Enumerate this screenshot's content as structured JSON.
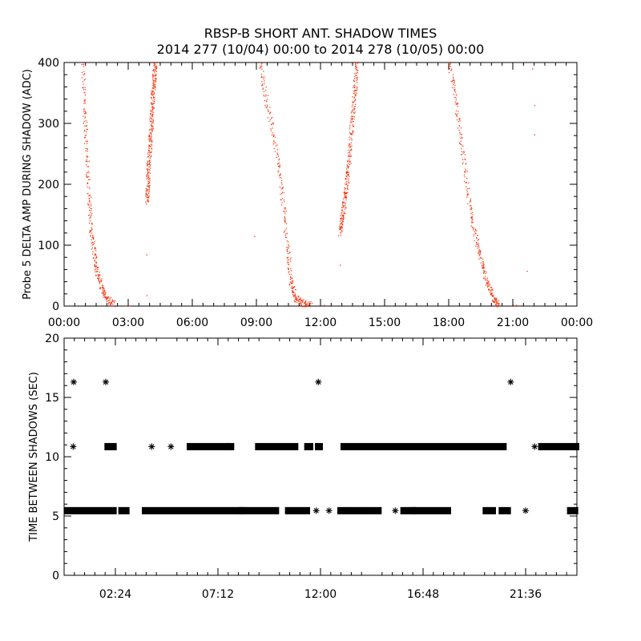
{
  "title_line1": "RBSP-B SHORT ANT. SHADOW TIMES",
  "title_line2": "2014 277 (10/04) 00:00 to 2014 278 (10/05) 00:00",
  "chart_data": [
    {
      "type": "scatter",
      "ylabel": "Probe 5 DELTA AMP DURING SHADOW (ADC)",
      "xlim": [
        0,
        24
      ],
      "ylim": [
        0,
        400
      ],
      "x_unit": "hours",
      "x_tick_labels": [
        "00:00",
        "03:00",
        "06:00",
        "09:00",
        "12:00",
        "15:00",
        "18:00",
        "21:00",
        "00:00"
      ],
      "y_tick_labels": [
        "0",
        "100",
        "200",
        "300",
        "400"
      ],
      "color": "#ff2a00",
      "curves": [
        {
          "x": [
            0.85,
            0.95,
            1.05,
            1.15,
            1.25,
            1.4,
            1.55,
            1.75,
            2.0,
            2.3
          ],
          "y": [
            400,
            320,
            250,
            180,
            125,
            85,
            55,
            30,
            12,
            3
          ]
        },
        {
          "x": [
            3.85,
            3.95,
            4.05,
            4.15,
            4.25
          ],
          "y": [
            170,
            230,
            290,
            350,
            400
          ]
        },
        {
          "x": [
            9.15,
            9.5,
            9.9,
            10.2,
            10.45,
            10.6,
            10.8,
            11.1,
            11.5
          ],
          "y": [
            400,
            330,
            260,
            180,
            95,
            40,
            15,
            6,
            2
          ]
        },
        {
          "x": [
            12.9,
            13.1,
            13.3,
            13.5,
            13.7
          ],
          "y": [
            120,
            170,
            230,
            320,
            400
          ]
        },
        {
          "x": [
            18.0,
            18.3,
            18.6,
            18.9,
            19.2,
            19.5,
            19.8,
            20.05,
            20.3
          ],
          "y": [
            400,
            340,
            260,
            180,
            120,
            75,
            40,
            15,
            3
          ]
        }
      ],
      "scattered_points": [
        {
          "x": 2.85,
          "y": 1
        },
        {
          "x": 3.05,
          "y": 1
        },
        {
          "x": 3.85,
          "y": 18
        },
        {
          "x": 3.85,
          "y": 85
        },
        {
          "x": 8.9,
          "y": 115
        },
        {
          "x": 12.15,
          "y": 2
        },
        {
          "x": 12.9,
          "y": 68
        },
        {
          "x": 21.0,
          "y": 3
        },
        {
          "x": 21.15,
          "y": 2
        },
        {
          "x": 21.65,
          "y": 58
        },
        {
          "x": 21.9,
          "y": 390
        },
        {
          "x": 22.0,
          "y": 330
        },
        {
          "x": 22.0,
          "y": 282
        }
      ]
    },
    {
      "type": "scatter",
      "ylabel": "TIME BETWEEN SHADOWS (SEC)",
      "xlim": [
        0,
        24
      ],
      "ylim": [
        0,
        20
      ],
      "x_unit": "hours",
      "x_tick_labels": [
        {
          "x": 2.4,
          "label": "02:24"
        },
        {
          "x": 7.2,
          "label": "07:12"
        },
        {
          "x": 12.0,
          "label": "12:00"
        },
        {
          "x": 16.8,
          "label": "16:48"
        },
        {
          "x": 21.6,
          "label": "21:36"
        }
      ],
      "y_tick_labels": [
        "0",
        "5",
        "10",
        "15",
        "20"
      ],
      "marker": "*",
      "color": "#000000",
      "series": [
        {
          "y": 5.45,
          "segments": [
            [
              0.1,
              2.35
            ],
            [
              2.65,
              2.95
            ],
            [
              3.75,
              8.3
            ],
            [
              8.3,
              9.95
            ],
            [
              10.45,
              11.4
            ],
            [
              11.75,
              11.85
            ],
            [
              12.35,
              12.45
            ],
            [
              12.9,
              13.25
            ],
            [
              13.45,
              13.95
            ],
            [
              14.15,
              14.75
            ],
            [
              15.45,
              15.55
            ],
            [
              15.85,
              16.35
            ],
            [
              16.4,
              18.0
            ],
            [
              19.7,
              20.1
            ],
            [
              20.45,
              20.8
            ],
            [
              21.55,
              21.65
            ],
            [
              23.65,
              23.95
            ]
          ]
        },
        {
          "y": 10.85,
          "segments": [
            [
              0.4,
              0.45
            ],
            [
              2.0,
              2.35
            ],
            [
              4.05,
              4.15
            ],
            [
              4.95,
              5.05
            ],
            [
              5.85,
              7.6
            ],
            [
              7.7,
              7.85
            ],
            [
              9.05,
              10.85
            ],
            [
              11.35,
              11.55
            ],
            [
              11.85,
              12.0
            ],
            [
              13.05,
              20.6
            ],
            [
              22.0,
              22.05
            ],
            [
              22.3,
              24.0
            ]
          ]
        },
        {
          "y": 16.3,
          "points": [
            0.45,
            1.95,
            11.9,
            20.9
          ]
        }
      ]
    }
  ]
}
